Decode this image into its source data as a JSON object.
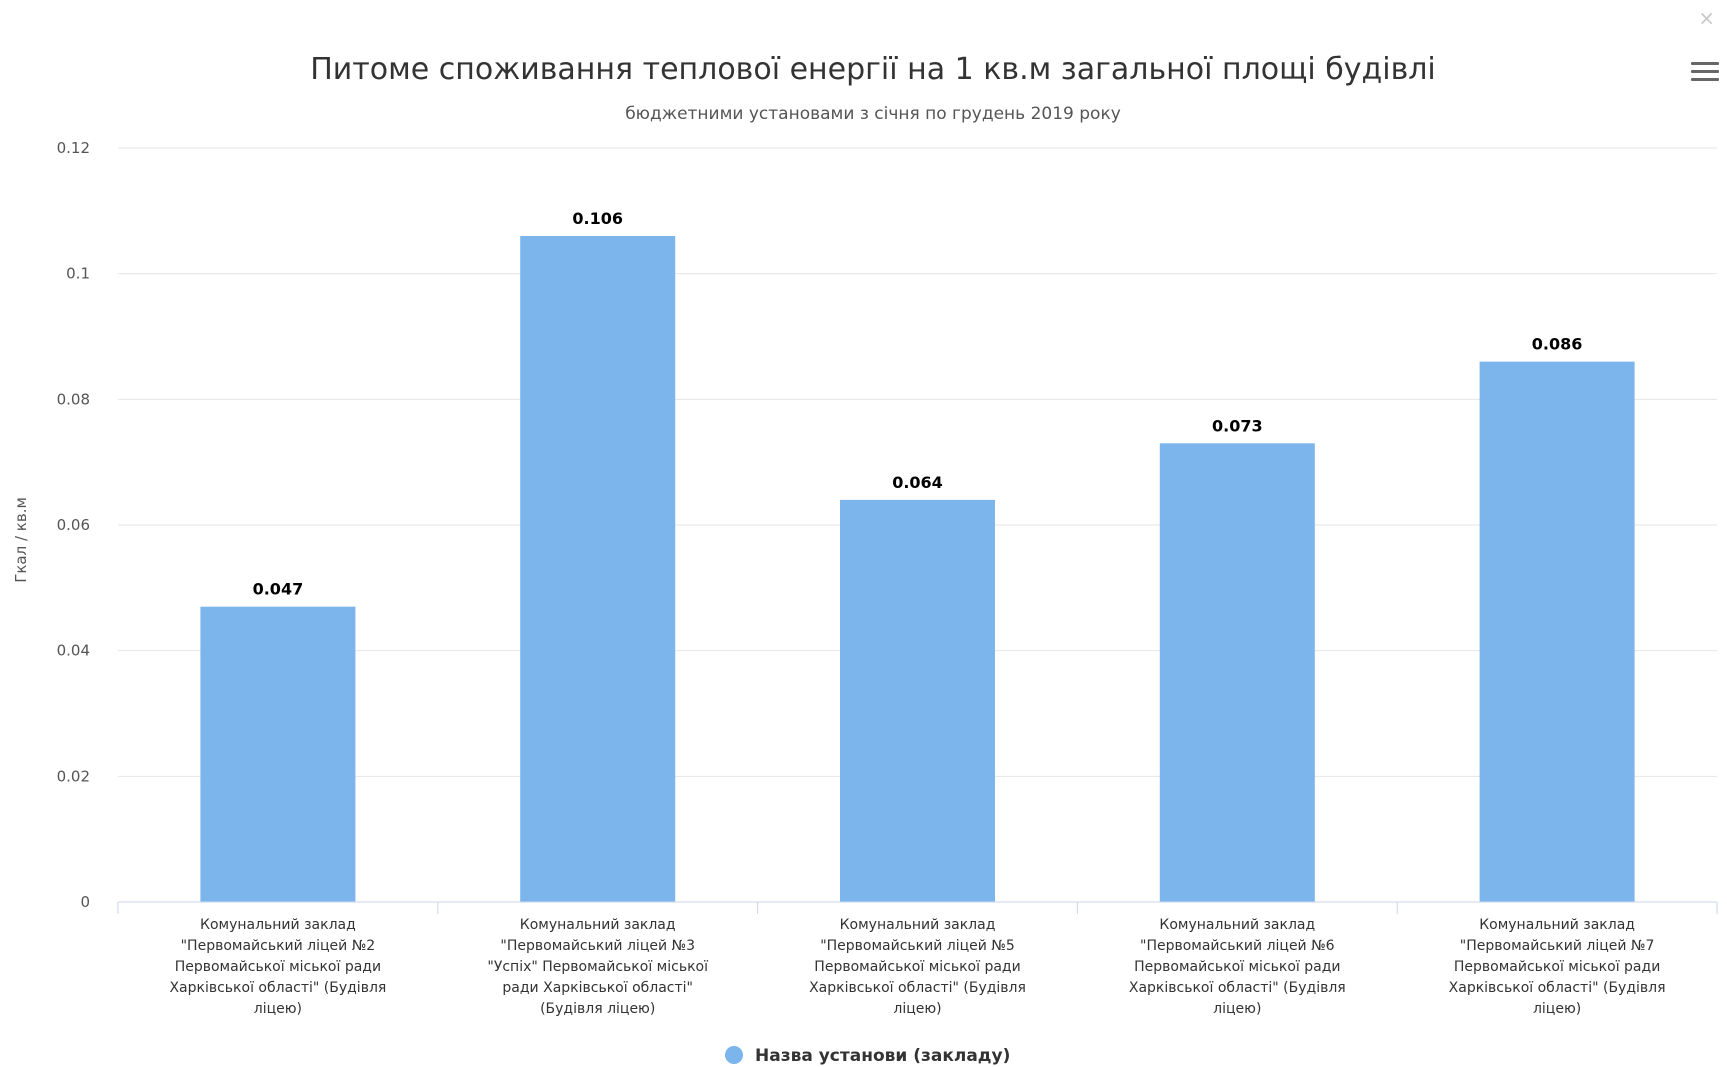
{
  "controls": {
    "close_glyph": "×",
    "menu_icon": "hamburger-menu-icon"
  },
  "colors": {
    "bar": "#7cb5ec",
    "grid": "#e6e6e6",
    "axis": "#ccd6eb"
  },
  "chart_data": {
    "type": "bar",
    "title": "Питоме споживання теплової енергії на 1 кв.м загальної площі будівлі",
    "subtitle": "бюджетними установами з січня по грудень 2019 року",
    "ylabel": "Гкал / кв.м",
    "ylim": [
      0,
      0.12
    ],
    "yticks": [
      "0",
      "0.02",
      "0.04",
      "0.06",
      "0.08",
      "0.1",
      "0.12"
    ],
    "grid": true,
    "legend_position": "bottom-center",
    "categories": [
      [
        "Комунальний заклад",
        "\"Первомайський ліцей №2",
        "Первомайської міської ради",
        "Харківської області\" (Будівля",
        "ліцею)"
      ],
      [
        "Комунальний заклад",
        "\"Первомайський ліцей №3",
        "\"Успіх\" Первомайської міської",
        "ради Харківської області\"",
        "(Будівля ліцею)"
      ],
      [
        "Комунальний заклад",
        "\"Первомайський ліцей №5",
        "Первомайської міської ради",
        "Харківської області\" (Будівля",
        "ліцею)"
      ],
      [
        "Комунальний заклад",
        "\"Первомайський ліцей №6",
        "Первомайської міської ради",
        "Харківської області\" (Будівля",
        "ліцею)"
      ],
      [
        "Комунальний заклад",
        "\"Первомайський ліцей №7",
        "Первомайської міської ради",
        "Харківської області\" (Будівля",
        "ліцею)"
      ]
    ],
    "series": [
      {
        "name": "Назва установи (закладу)",
        "values": [
          0.047,
          0.106,
          0.064,
          0.073,
          0.086
        ],
        "labels": [
          "0.047",
          "0.106",
          "0.064",
          "0.073",
          "0.086"
        ]
      }
    ]
  }
}
